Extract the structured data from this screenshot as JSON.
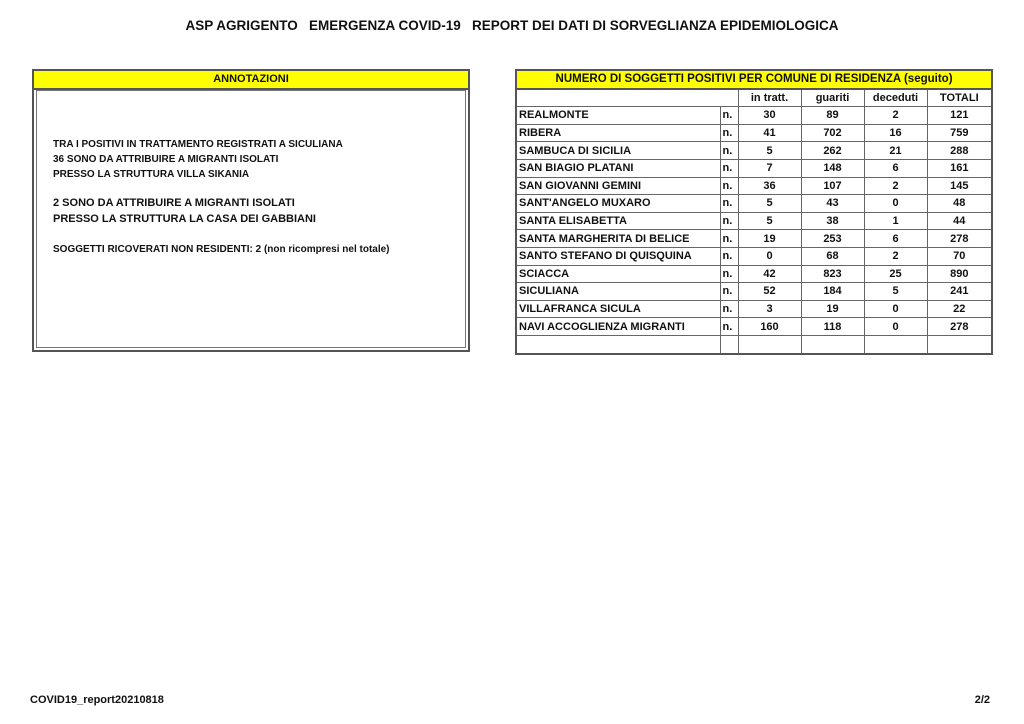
{
  "title": "ASP AGRIGENTO   EMERGENZA COVID-19   REPORT DEI DATI DI SORVEGLIANZA EPIDEMIOLOGICA",
  "annotations": {
    "header": "ANNOTAZIONI",
    "lines": [
      "TRA I POSITIVI IN TRATTAMENTO REGISTRATI A SICULIANA",
      "36 SONO DA ATTRIBUIRE A MIGRANTI ISOLATI",
      "PRESSO LA STRUTTURA VILLA SIKANIA",
      "2 SONO DA ATTRIBUIRE A MIGRANTI ISOLATI",
      "PRESSO LA STRUTTURA LA CASA DEI GABBIANI",
      "SOGGETTI RICOVERATI NON RESIDENTI: 2 (non ricompresi nel totale)"
    ]
  },
  "table": {
    "title": "NUMERO DI SOGGETTI POSITIVI PER COMUNE DI RESIDENZA (seguito)",
    "columns": [
      "in tratt.",
      "guariti",
      "deceduti",
      "TOTALI"
    ],
    "unit": "n.",
    "rows": [
      {
        "name": "REALMONTE",
        "values": [
          "30",
          "89",
          "2",
          "121"
        ]
      },
      {
        "name": "RIBERA",
        "values": [
          "41",
          "702",
          "16",
          "759"
        ]
      },
      {
        "name": "SAMBUCA DI SICILIA",
        "values": [
          "5",
          "262",
          "21",
          "288"
        ]
      },
      {
        "name": "SAN BIAGIO PLATANI",
        "values": [
          "7",
          "148",
          "6",
          "161"
        ]
      },
      {
        "name": "SAN GIOVANNI GEMINI",
        "values": [
          "36",
          "107",
          "2",
          "145"
        ]
      },
      {
        "name": "SANT'ANGELO MUXARO",
        "values": [
          "5",
          "43",
          "0",
          "48"
        ]
      },
      {
        "name": "SANTA ELISABETTA",
        "values": [
          "5",
          "38",
          "1",
          "44"
        ]
      },
      {
        "name": "SANTA MARGHERITA DI BELICE",
        "values": [
          "19",
          "253",
          "6",
          "278"
        ]
      },
      {
        "name": "SANTO STEFANO DI QUISQUINA",
        "values": [
          "0",
          "68",
          "2",
          "70"
        ]
      },
      {
        "name": "SCIACCA",
        "values": [
          "42",
          "823",
          "25",
          "890"
        ]
      },
      {
        "name": "SICULIANA",
        "values": [
          "52",
          "184",
          "5",
          "241"
        ]
      },
      {
        "name": "VILLAFRANCA SICULA",
        "values": [
          "3",
          "19",
          "0",
          "22"
        ]
      },
      {
        "name": "NAVI ACCOGLIENZA MIGRANTI",
        "values": [
          "160",
          "118",
          "0",
          "278"
        ]
      }
    ]
  },
  "footer": {
    "report_id": "COVID19_report20210818",
    "page": "2/2"
  },
  "colors": {
    "header_fill": "#ffff00"
  }
}
